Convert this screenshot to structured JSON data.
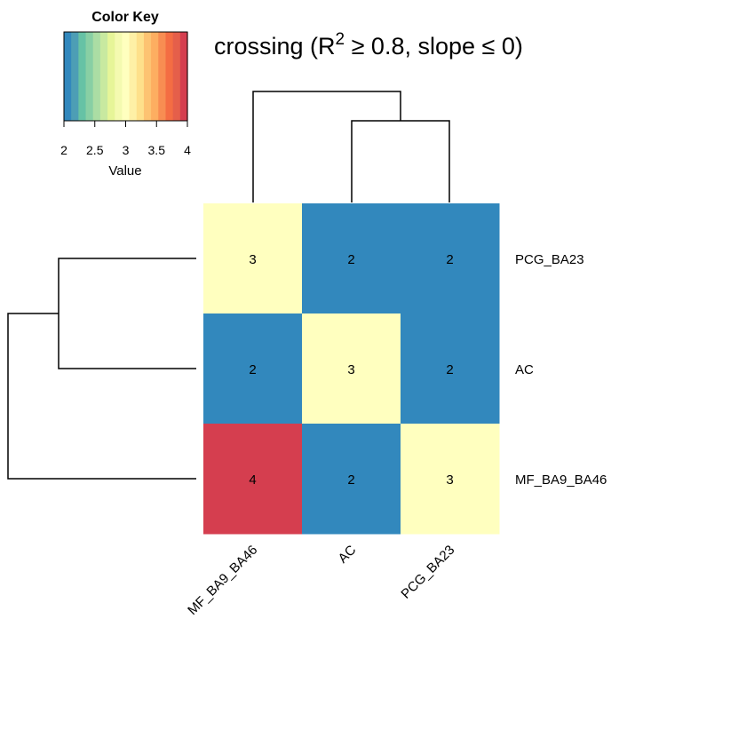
{
  "chart_data": {
    "type": "heatmap",
    "title_main": "crossing (R",
    "title_sup": "2",
    "title_rest": " ≥ 0.8, slope ≤ 0)",
    "columns": [
      "MF_BA9_BA46",
      "AC",
      "PCG_BA23"
    ],
    "rows": [
      "PCG_BA23",
      "AC",
      "MF_BA9_BA46"
    ],
    "values": [
      [
        3,
        2,
        2
      ],
      [
        2,
        3,
        2
      ],
      [
        4,
        2,
        3
      ]
    ],
    "cell_labels": [
      [
        "3",
        "2",
        "2"
      ],
      [
        "2",
        "3",
        "2"
      ],
      [
        "4",
        "2",
        "3"
      ]
    ],
    "color_scale": {
      "min": 2,
      "max": 4,
      "palette": [
        "#3288BD",
        "#4D9EB5",
        "#66C2A5",
        "#88CFA4",
        "#ABDDA4",
        "#C8E9A0",
        "#E6F598",
        "#F4FAB0",
        "#FFFFBF",
        "#FEF0A6",
        "#FEE08B",
        "#FDC372",
        "#FDAE61",
        "#F88D52",
        "#F46D43",
        "#E55F4A",
        "#D53E4F"
      ]
    },
    "colors": {
      "low": "#3288BD",
      "mid": "#FFFFBF",
      "high": "#D53E4F"
    },
    "color_key": {
      "title": "Color Key",
      "ticks": [
        "2",
        "2.5",
        "3",
        "3.5",
        "4"
      ],
      "xlabel": "Value"
    },
    "col_dendrogram": "((MF_BA9_BA46),(AC,PCG_BA23))",
    "row_dendrogram": "((PCG_BA23,AC),MF_BA9_BA46)"
  }
}
